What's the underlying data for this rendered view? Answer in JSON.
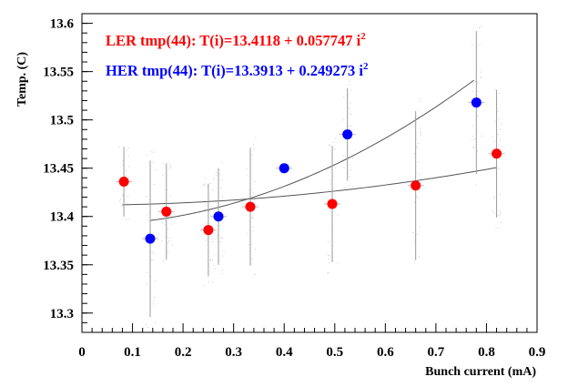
{
  "chart_data": {
    "type": "scatter",
    "title": "",
    "xlabel": "Bunch current (mA)",
    "ylabel": "Temp. (C)",
    "xlim": [
      0,
      0.9
    ],
    "ylim": [
      13.28,
      13.61
    ],
    "x_ticks": [
      "0",
      "0.1",
      "0.2",
      "0.3",
      "0.4",
      "0.5",
      "0.6",
      "0.7",
      "0.8",
      "0.9"
    ],
    "y_ticks": [
      "13.3",
      "13.35",
      "13.4",
      "13.45",
      "13.5",
      "13.55",
      "13.6"
    ],
    "grid": false,
    "legend_position": "top-left",
    "series": [
      {
        "name": "LER tmp(44)",
        "color": "#ff0000",
        "fit_label": "LER tmp(44): T(i)=13.4118 + 0.057747 i",
        "fit_exponent": "2",
        "fit": {
          "a": 13.4118,
          "b": 0.057747,
          "x_range": [
            0.08,
            0.82
          ]
        },
        "points": [
          {
            "x": 0.083,
            "y": 13.436,
            "yerr": 0.036
          },
          {
            "x": 0.167,
            "y": 13.405,
            "yerr": 0.05
          },
          {
            "x": 0.25,
            "y": 13.386,
            "yerr": 0.048
          },
          {
            "x": 0.333,
            "y": 13.41,
            "yerr": 0.061
          },
          {
            "x": 0.495,
            "y": 13.413,
            "yerr": 0.06
          },
          {
            "x": 0.66,
            "y": 13.432,
            "yerr": 0.077
          },
          {
            "x": 0.82,
            "y": 13.465,
            "yerr": 0.066
          }
        ]
      },
      {
        "name": "HER tmp(44)",
        "color": "#0000ff",
        "fit_label": "HER tmp(44): T(i)=13.3913 + 0.249273 i",
        "fit_exponent": "2",
        "fit": {
          "a": 13.3913,
          "b": 0.249273,
          "x_range": [
            0.135,
            0.775
          ]
        },
        "points": [
          {
            "x": 0.135,
            "y": 13.377,
            "yerr": 0.081
          },
          {
            "x": 0.27,
            "y": 13.4,
            "yerr": 0.05
          },
          {
            "x": 0.4,
            "y": 13.45,
            "yerr": 0.004
          },
          {
            "x": 0.525,
            "y": 13.485,
            "yerr": 0.048
          },
          {
            "x": 0.78,
            "y": 13.518,
            "yerr": 0.074
          }
        ]
      }
    ]
  }
}
